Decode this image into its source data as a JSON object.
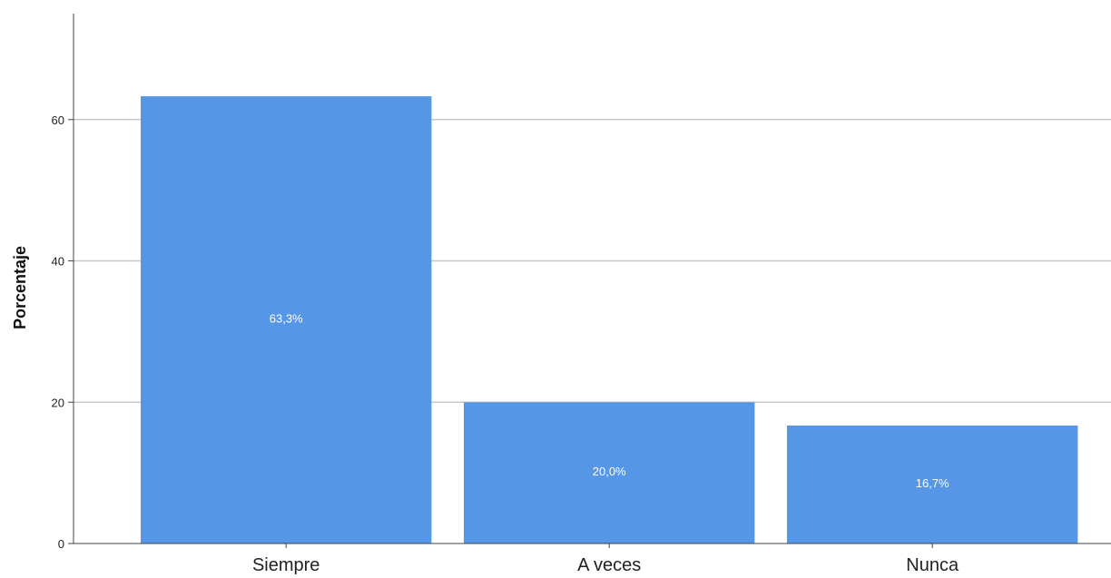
{
  "chart_data": {
    "type": "bar",
    "categories": [
      "Siempre",
      "A veces",
      "Nunca"
    ],
    "values": [
      63.3,
      20.0,
      16.7
    ],
    "data_labels": [
      "63,3%",
      "20,0%",
      "16,7%"
    ],
    "title": "",
    "xlabel": "",
    "ylabel": "Porcentaje",
    "ylim": [
      0,
      75
    ],
    "yticks": [
      0,
      20,
      40,
      60
    ],
    "ytick_labels": [
      "0",
      "20",
      "40",
      "60"
    ],
    "grid": "horizontal",
    "bar_color": "#5596e6",
    "grid_color": "#c8c8c8",
    "axis_color": "#444444"
  }
}
